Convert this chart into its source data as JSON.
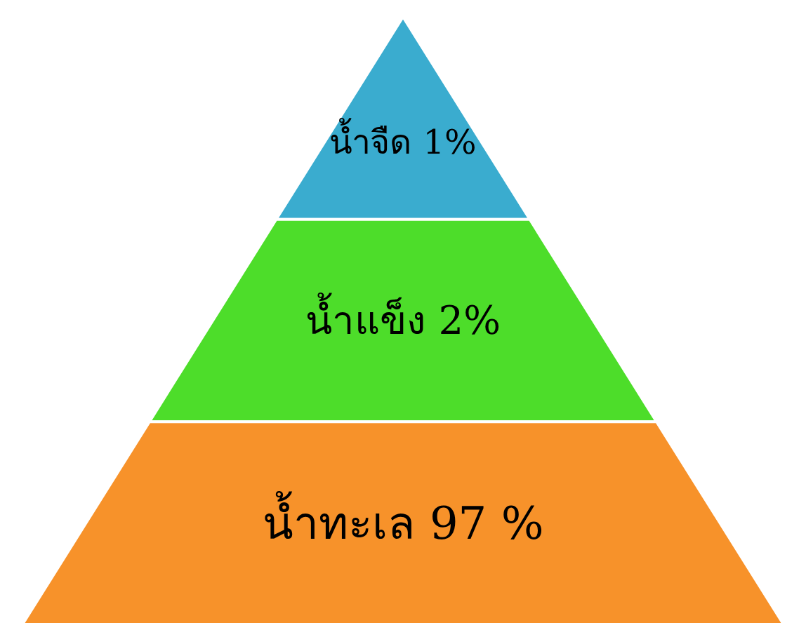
{
  "chart_data": {
    "type": "other",
    "categories": [
      "น้ำจืด",
      "น้ำแข็ง",
      "น้ำทะเล"
    ],
    "values": [
      1,
      2,
      97
    ],
    "value_labels": [
      "1%",
      "2%",
      "97 %"
    ],
    "colors": [
      "#3aaccf",
      "#4ddd2a",
      "#f7922a"
    ]
  }
}
